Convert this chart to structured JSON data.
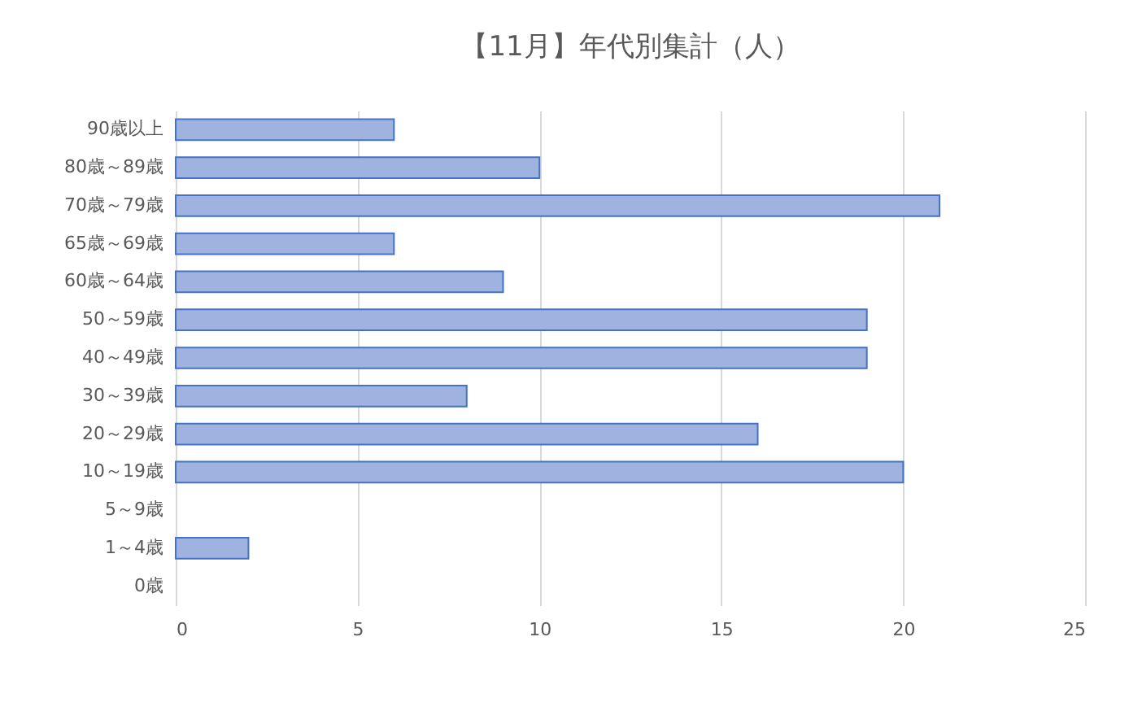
{
  "chart_data": {
    "type": "bar",
    "orientation": "horizontal",
    "title": "【11月】年代別集計（人）",
    "categories": [
      "90歳以上",
      "80歳～89歳",
      "70歳～79歳",
      "65歳～69歳",
      "60歳～64歳",
      "50～59歳",
      "40～49歳",
      "30～39歳",
      "20～29歳",
      "10～19歳",
      "5～9歳",
      "1～4歳",
      "0歳"
    ],
    "values": [
      6,
      10,
      21,
      6,
      9,
      19,
      19,
      8,
      16,
      20,
      0,
      2,
      0
    ],
    "color": "#a0b2e0",
    "xlim": [
      0,
      25
    ],
    "xticks": [
      0,
      5,
      10,
      15,
      20,
      25
    ],
    "grid": "x"
  }
}
